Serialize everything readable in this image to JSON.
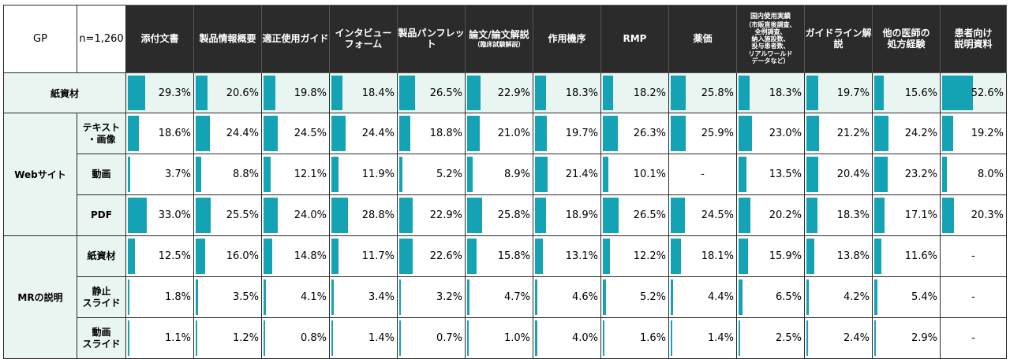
{
  "chart_data": {
    "type": "table",
    "corner": {
      "gp": "GP",
      "n": "n=1,260"
    },
    "columns": [
      {
        "label": "添付文書"
      },
      {
        "label": "製品情報概要"
      },
      {
        "label": "適正使用ガイド"
      },
      {
        "label": "インタビュー\nフォーム"
      },
      {
        "label": "製品パンフレット"
      },
      {
        "label": "論文/論文解説",
        "sub": "（臨床試験解説）"
      },
      {
        "label": "作用機序"
      },
      {
        "label": "RMP"
      },
      {
        "label": "薬価"
      },
      {
        "label": "国内使用実績",
        "sub": "（市販直後調査、\n全例調査、\n納入施設数、\n投与患者数、\nリアルワールド\nデータなど）"
      },
      {
        "label": "ガイドライン解説"
      },
      {
        "label": "他の医師の\n処方経験"
      },
      {
        "label": "患者向け\n説明資料"
      }
    ],
    "groups": [
      {
        "label": "紙資材",
        "rows": [
          {
            "label": "",
            "values": [
              29.3,
              20.6,
              19.8,
              18.4,
              26.5,
              22.9,
              18.3,
              18.2,
              25.8,
              18.3,
              19.7,
              15.6,
              52.6
            ]
          }
        ]
      },
      {
        "label": "Webサイト",
        "rows": [
          {
            "label": "テキスト\n・画像",
            "values": [
              18.6,
              24.4,
              24.5,
              24.4,
              18.8,
              21.0,
              19.7,
              26.3,
              25.9,
              23.0,
              21.2,
              24.2,
              19.2
            ]
          },
          {
            "label": "動画",
            "values": [
              3.7,
              8.8,
              12.1,
              11.9,
              5.2,
              8.9,
              21.4,
              10.1,
              null,
              13.5,
              20.4,
              23.2,
              8.0
            ]
          },
          {
            "label": "PDF",
            "values": [
              33.0,
              25.5,
              24.0,
              28.8,
              22.9,
              25.8,
              18.9,
              26.5,
              24.5,
              20.2,
              18.3,
              17.1,
              20.3
            ]
          }
        ]
      },
      {
        "label": "MRの説明",
        "rows": [
          {
            "label": "紙資材",
            "values": [
              12.5,
              16.0,
              14.8,
              11.7,
              22.6,
              15.8,
              13.1,
              12.2,
              18.1,
              15.9,
              13.8,
              11.6,
              null
            ]
          },
          {
            "label": "静止\nスライド",
            "values": [
              1.8,
              3.5,
              4.1,
              3.4,
              3.2,
              4.7,
              4.6,
              5.2,
              4.4,
              6.5,
              4.2,
              5.4,
              null
            ]
          },
          {
            "label": "動画\nスライド",
            "values": [
              1.1,
              1.2,
              0.8,
              1.4,
              0.7,
              1.0,
              4.0,
              1.6,
              1.4,
              2.5,
              2.4,
              2.9,
              null
            ]
          }
        ]
      }
    ],
    "missing_label": "-",
    "unit": "%",
    "colors": {
      "bar": "#14a3b4",
      "header_bg": "#2b2b2b",
      "row_shade": "#e9f5f1"
    }
  }
}
